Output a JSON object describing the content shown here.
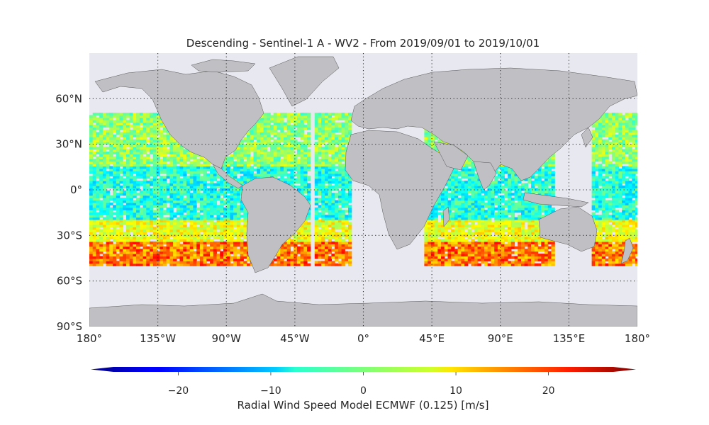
{
  "title": "Descending - Sentinel-1 A - WV2 - From 2019/09/01 to 2019/10/01",
  "map": {
    "projection": "PlateCarree",
    "ocean_color": "#e8e8f0",
    "land_color": "#c0c0c4",
    "gridlines": true,
    "lon_ticks": [
      {
        "value": -180,
        "label": "180°"
      },
      {
        "value": -135,
        "label": "135°W"
      },
      {
        "value": -90,
        "label": "90°W"
      },
      {
        "value": -45,
        "label": "45°W"
      },
      {
        "value": 0,
        "label": "0°"
      },
      {
        "value": 45,
        "label": "45°E"
      },
      {
        "value": 90,
        "label": "90°E"
      },
      {
        "value": 135,
        "label": "135°E"
      },
      {
        "value": 180,
        "label": "180°"
      }
    ],
    "lat_ticks": [
      {
        "value": 60,
        "label": "60°N"
      },
      {
        "value": 30,
        "label": "30°N"
      },
      {
        "value": 0,
        "label": "0°"
      },
      {
        "value": -30,
        "label": "30°S"
      },
      {
        "value": -60,
        "label": "60°S"
      },
      {
        "value": -90,
        "label": "90°S"
      }
    ],
    "lat_range": [
      -90,
      90
    ],
    "lon_range": [
      -180,
      180
    ],
    "data_lat_range": [
      -50,
      50
    ]
  },
  "colorbar": {
    "label": "Radial Wind Speed Model ECMWF (0.125) [m/s]",
    "vmin": -27,
    "vmax": 27,
    "extend": "both",
    "colormap": "jet",
    "ticks": [
      {
        "value": -20,
        "label": "−20"
      },
      {
        "value": -10,
        "label": "−10"
      },
      {
        "value": 0,
        "label": "0"
      },
      {
        "value": 10,
        "label": "10"
      },
      {
        "value": 20,
        "label": "20"
      }
    ]
  }
}
